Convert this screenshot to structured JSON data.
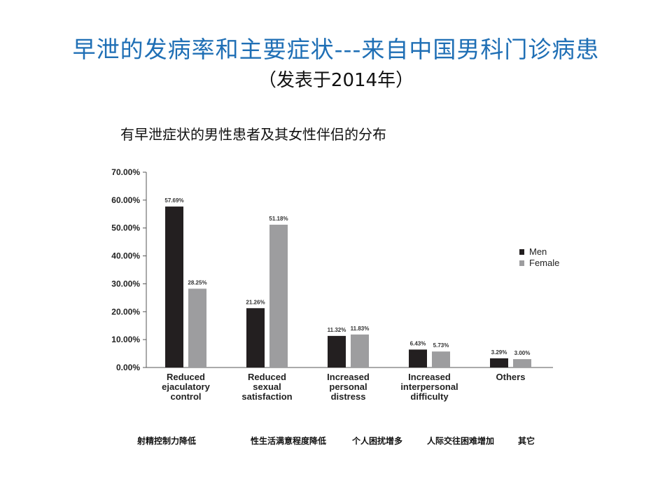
{
  "slide": {
    "title": "早泄的发病率和主要症状---来自中国男科门诊病患",
    "subtitle": "（发表于2014年）",
    "chart_caption": "有早泄症状的男性患者及其女性伴侣的分布",
    "chinese_category_labels": [
      "射精控制力降低",
      "性生活满意程度降低",
      "个人困扰增多",
      "人际交往困难增加",
      "其它"
    ]
  },
  "chart_data": {
    "type": "bar",
    "categories": [
      [
        "Reduced",
        "ejaculatory",
        "control"
      ],
      [
        "Reduced",
        "sexual",
        "satisfaction"
      ],
      [
        "Increased",
        "personal",
        "distress"
      ],
      [
        "Increased",
        "interpersonal",
        "difficulty"
      ],
      [
        "Others"
      ]
    ],
    "series": [
      {
        "name": "Men",
        "color": "#231f20",
        "values": [
          57.69,
          21.26,
          11.32,
          6.43,
          3.29
        ],
        "labels": [
          "57.69%",
          "21.26%",
          "11.32%",
          "6.43%",
          "3.29%"
        ]
      },
      {
        "name": "Female",
        "color": "#9d9d9f",
        "values": [
          28.25,
          51.18,
          11.83,
          5.73,
          3.0
        ],
        "labels": [
          "28.25%",
          "51.18%",
          "11.83%",
          "5.73%",
          "3.00%"
        ]
      }
    ],
    "ylim": [
      0,
      70
    ],
    "yticks": [
      "0.00%",
      "10.00%",
      "20.00%",
      "30.00%",
      "40.00%",
      "50.00%",
      "60.00%",
      "70.00%"
    ],
    "legend_position": "right",
    "grid": false
  }
}
